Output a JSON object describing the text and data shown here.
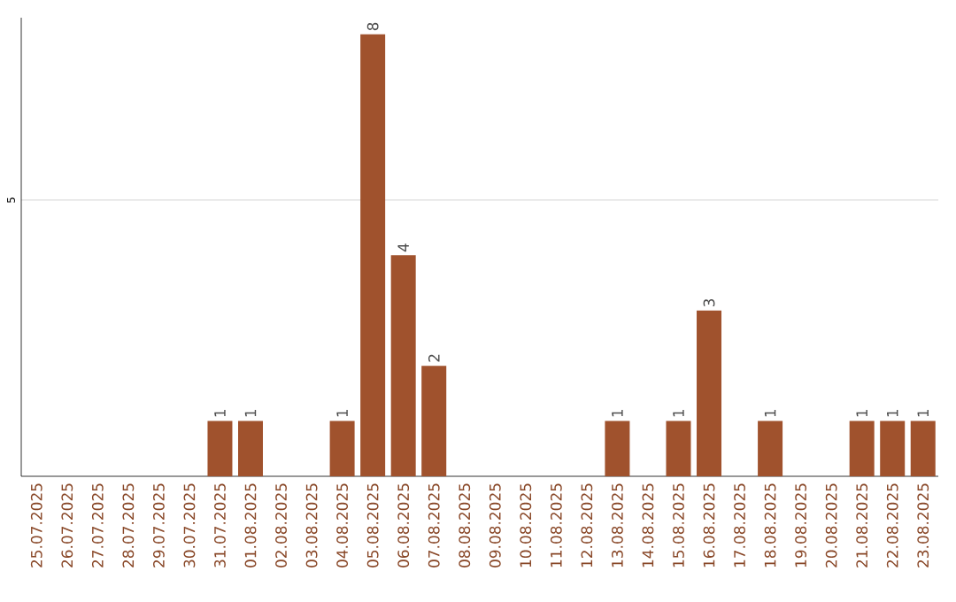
{
  "chart_data": {
    "type": "bar",
    "categories": [
      "25.07.2025",
      "26.07.2025",
      "27.07.2025",
      "28.07.2025",
      "29.07.2025",
      "30.07.2025",
      "31.07.2025",
      "01.08.2025",
      "02.08.2025",
      "03.08.2025",
      "04.08.2025",
      "05.08.2025",
      "06.08.2025",
      "07.08.2025",
      "08.08.2025",
      "09.08.2025",
      "10.08.2025",
      "11.08.2025",
      "12.08.2025",
      "13.08.2025",
      "14.08.2025",
      "15.08.2025",
      "16.08.2025",
      "17.08.2025",
      "18.08.2025",
      "19.08.2025",
      "20.08.2025",
      "21.08.2025",
      "22.08.2025",
      "23.08.2025"
    ],
    "values": [
      0,
      0,
      0,
      0,
      0,
      0,
      1,
      1,
      0,
      0,
      1,
      8,
      4,
      2,
      0,
      0,
      0,
      0,
      0,
      1,
      0,
      1,
      3,
      0,
      1,
      0,
      0,
      1,
      1,
      1
    ],
    "value_labels": [
      null,
      null,
      null,
      null,
      null,
      null,
      "1",
      "1",
      null,
      null,
      "1",
      "8",
      "4",
      "2",
      null,
      null,
      null,
      null,
      null,
      "1",
      null,
      "1",
      "3",
      null,
      "1",
      null,
      null,
      "1",
      "1",
      "1"
    ],
    "color": "#a0522d",
    "ylim": [
      0,
      8.3
    ],
    "yticks": [
      5
    ],
    "grid": "y"
  }
}
